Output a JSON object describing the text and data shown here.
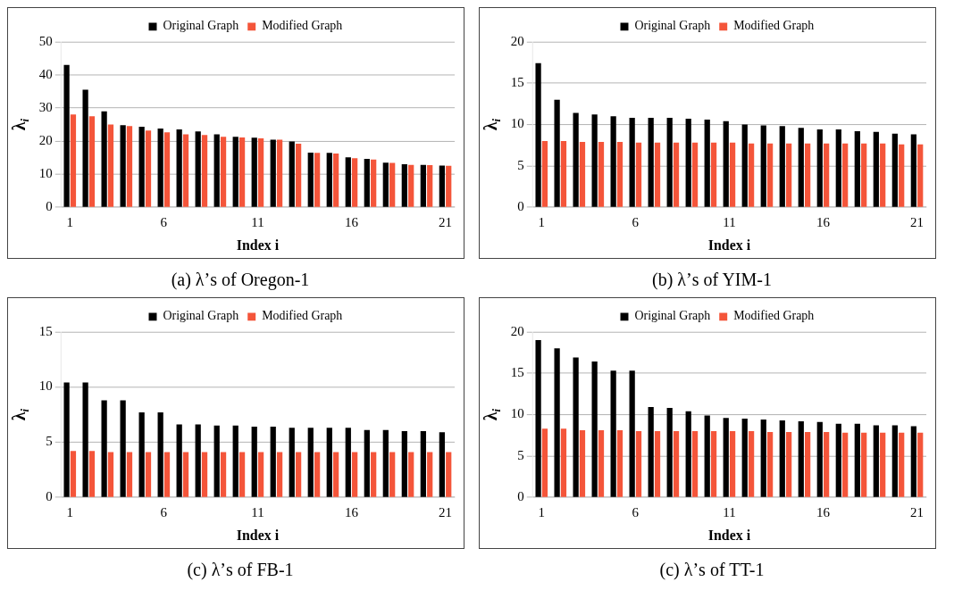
{
  "chart_data": [
    {
      "type": "bar",
      "title": "(a) λ’s of Oregon-1",
      "xlabel": "Index i",
      "ylabel": "λ$_{i}$",
      "categories": [
        "1",
        null,
        null,
        null,
        null,
        "6",
        null,
        null,
        null,
        null,
        "11",
        null,
        null,
        null,
        null,
        "16",
        null,
        null,
        null,
        null,
        "21"
      ],
      "series": [
        {
          "name": "Original Graph",
          "color": "#000000",
          "values": [
            43,
            35.5,
            29,
            24.8,
            24.3,
            23.8,
            23.5,
            22.9,
            22,
            21.3,
            21,
            20.4,
            19.9,
            16.5,
            16.4,
            15.1,
            14.6,
            13.5,
            13,
            12.8,
            12.6
          ]
        },
        {
          "name": "Modified Graph",
          "color": "#f4553a",
          "values": [
            28,
            27.5,
            25,
            24.5,
            23.2,
            22.6,
            22,
            21.8,
            21.3,
            21.1,
            20.8,
            20.4,
            19.2,
            16.4,
            16.2,
            14.8,
            14.4,
            13.4,
            12.8,
            12.7,
            12.5
          ]
        }
      ],
      "ylim": [
        0,
        50
      ],
      "yticks": [
        0,
        10,
        20,
        30,
        40,
        50
      ],
      "grid": "y",
      "legend": "top"
    },
    {
      "type": "bar",
      "title": "(b) λ’s of YIM-1",
      "xlabel": "Index i",
      "ylabel": "λ$_{i}$",
      "categories": [
        "1",
        null,
        null,
        null,
        null,
        "6",
        null,
        null,
        null,
        null,
        "11",
        null,
        null,
        null,
        null,
        "16",
        null,
        null,
        null,
        null,
        "21"
      ],
      "series": [
        {
          "name": "Original Graph",
          "color": "#000000",
          "values": [
            17.4,
            13,
            11.4,
            11.2,
            11,
            10.8,
            10.8,
            10.8,
            10.7,
            10.6,
            10.4,
            10,
            9.9,
            9.8,
            9.6,
            9.4,
            9.4,
            9.2,
            9.1,
            8.9,
            8.8
          ]
        },
        {
          "name": "Modified Graph",
          "color": "#f4553a",
          "values": [
            8,
            8,
            7.9,
            7.9,
            7.9,
            7.8,
            7.8,
            7.8,
            7.8,
            7.8,
            7.8,
            7.7,
            7.7,
            7.7,
            7.7,
            7.7,
            7.7,
            7.7,
            7.7,
            7.6,
            7.6
          ]
        }
      ],
      "ylim": [
        0,
        20
      ],
      "yticks": [
        0,
        5,
        10,
        15,
        20
      ],
      "grid": "y",
      "legend": "top"
    },
    {
      "type": "bar",
      "title": "(c) λ’s of FB-1",
      "xlabel": "Index i",
      "ylabel": "λ$_{i}$",
      "categories": [
        "1",
        null,
        null,
        null,
        null,
        "6",
        null,
        null,
        null,
        null,
        "11",
        null,
        null,
        null,
        null,
        "16",
        null,
        null,
        null,
        null,
        "21"
      ],
      "series": [
        {
          "name": "Original Graph",
          "color": "#000000",
          "values": [
            10.4,
            10.4,
            8.8,
            8.8,
            7.7,
            7.7,
            6.6,
            6.6,
            6.5,
            6.5,
            6.4,
            6.4,
            6.3,
            6.3,
            6.3,
            6.3,
            6.1,
            6.1,
            6,
            6,
            5.9
          ]
        },
        {
          "name": "Modified Graph",
          "color": "#f4553a",
          "values": [
            4.2,
            4.2,
            4.1,
            4.1,
            4.1,
            4.1,
            4.1,
            4.1,
            4.1,
            4.1,
            4.1,
            4.1,
            4.1,
            4.1,
            4.1,
            4.1,
            4.1,
            4.1,
            4.1,
            4.1,
            4.1
          ]
        }
      ],
      "ylim": [
        0,
        15
      ],
      "yticks": [
        0,
        5,
        10,
        15
      ],
      "grid": "y",
      "legend": "top"
    },
    {
      "type": "bar",
      "title": "(c) λ’s of TT-1",
      "xlabel": "Index i",
      "ylabel": "λ$_{i}$",
      "categories": [
        "1",
        null,
        null,
        null,
        null,
        "6",
        null,
        null,
        null,
        null,
        "11",
        null,
        null,
        null,
        null,
        "16",
        null,
        null,
        null,
        null,
        "21"
      ],
      "series": [
        {
          "name": "Original Graph",
          "color": "#000000",
          "values": [
            19,
            18,
            16.9,
            16.4,
            15.3,
            15.3,
            10.9,
            10.8,
            10.4,
            9.9,
            9.6,
            9.5,
            9.4,
            9.3,
            9.2,
            9.1,
            8.9,
            8.9,
            8.7,
            8.7,
            8.6
          ]
        },
        {
          "name": "Modified Graph",
          "color": "#f4553a",
          "values": [
            8.3,
            8.3,
            8.1,
            8.1,
            8.1,
            8,
            8,
            8,
            8,
            8,
            8,
            8,
            7.9,
            7.9,
            7.9,
            7.9,
            7.8,
            7.8,
            7.8,
            7.8,
            7.8
          ]
        }
      ],
      "ylim": [
        0,
        20
      ],
      "yticks": [
        0,
        5,
        10,
        15,
        20
      ],
      "grid": "y",
      "legend": "top"
    }
  ]
}
